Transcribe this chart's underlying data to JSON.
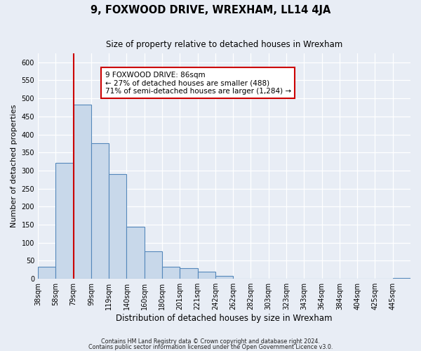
{
  "title": "9, FOXWOOD DRIVE, WREXHAM, LL14 4JA",
  "subtitle": "Size of property relative to detached houses in Wrexham",
  "xlabel": "Distribution of detached houses by size in Wrexham",
  "ylabel": "Number of detached properties",
  "footer_line1": "Contains HM Land Registry data © Crown copyright and database right 2024.",
  "footer_line2": "Contains public sector information licensed under the Open Government Licence v3.0.",
  "bar_labels": [
    "38sqm",
    "58sqm",
    "79sqm",
    "99sqm",
    "119sqm",
    "140sqm",
    "160sqm",
    "180sqm",
    "201sqm",
    "221sqm",
    "242sqm",
    "262sqm",
    "282sqm",
    "303sqm",
    "323sqm",
    "343sqm",
    "364sqm",
    "384sqm",
    "404sqm",
    "425sqm",
    "445sqm"
  ],
  "bar_values": [
    33,
    322,
    483,
    376,
    291,
    144,
    76,
    34,
    30,
    19,
    8,
    1,
    0,
    1,
    0,
    0,
    0,
    0,
    0,
    0,
    2
  ],
  "bar_color": "#c8d8ea",
  "bar_edge_color": "#5588bb",
  "background_color": "#e8edf5",
  "grid_color": "#ffffff",
  "ylim": [
    0,
    625
  ],
  "yticks": [
    0,
    50,
    100,
    150,
    200,
    250,
    300,
    350,
    400,
    450,
    500,
    550,
    600
  ],
  "red_line_index": 2,
  "annotation_title": "9 FOXWOOD DRIVE: 86sqm",
  "annotation_line1": "← 27% of detached houses are smaller (488)",
  "annotation_line2": "71% of semi-detached houses are larger (1,284) →"
}
